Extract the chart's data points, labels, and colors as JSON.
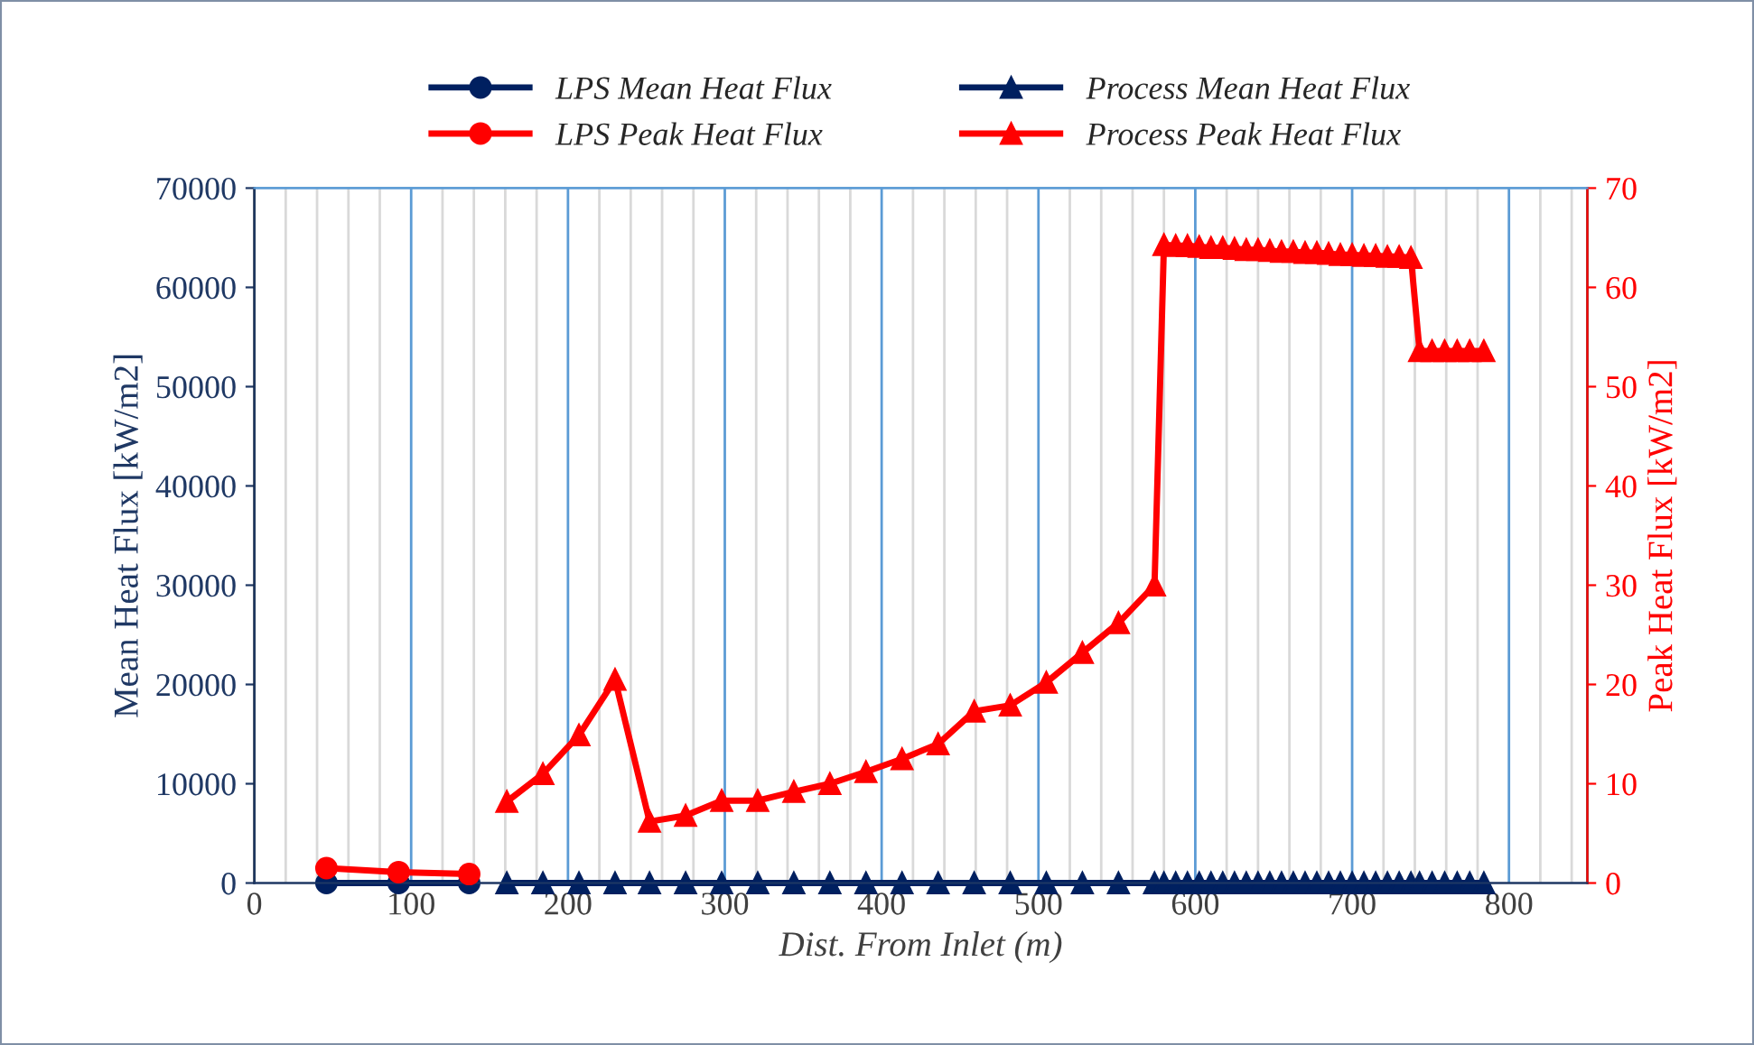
{
  "chart_data": {
    "type": "line",
    "xlabel": "Dist. From Inlet (m)",
    "ylabel": "Mean Heat Flux [kW/m2]",
    "y2label": "Peak Heat Flux [kW/m2]",
    "xlim": [
      0,
      850
    ],
    "xticks": [
      0,
      {
        "value": 20,
        "label": null
      },
      {
        "value": 40,
        "label": null
      },
      {
        "value": 60,
        "label": null
      },
      {
        "value": 80,
        "label": null
      },
      100,
      {
        "value": 120,
        "label": null
      },
      {
        "value": 140,
        "label": null
      },
      {
        "value": 160,
        "label": null
      },
      {
        "value": 180,
        "label": null
      },
      200,
      {
        "value": 220,
        "label": null
      },
      {
        "value": 240,
        "label": null
      },
      {
        "value": 260,
        "label": null
      },
      {
        "value": 280,
        "label": null
      },
      300,
      {
        "value": 320,
        "label": null
      },
      {
        "value": 340,
        "label": null
      },
      {
        "value": 360,
        "label": null
      },
      {
        "value": 380,
        "label": null
      },
      400,
      {
        "value": 420,
        "label": null
      },
      {
        "value": 440,
        "label": null
      },
      {
        "value": 460,
        "label": null
      },
      {
        "value": 480,
        "label": null
      },
      500,
      {
        "value": 520,
        "label": null
      },
      {
        "value": 540,
        "label": null
      },
      {
        "value": 560,
        "label": null
      },
      {
        "value": 580,
        "label": null
      },
      600,
      {
        "value": 620,
        "label": null
      },
      {
        "value": 640,
        "label": null
      },
      {
        "value": 660,
        "label": null
      },
      {
        "value": 680,
        "label": null
      },
      700,
      {
        "value": 720,
        "label": null
      },
      {
        "value": 740,
        "label": null
      },
      {
        "value": 760,
        "label": null
      },
      {
        "value": 780,
        "label": null
      },
      800,
      {
        "value": 820,
        "label": null
      },
      {
        "value": 840,
        "label": null
      }
    ],
    "ylim": [
      0,
      70000
    ],
    "yticks": [
      0,
      10000,
      20000,
      30000,
      40000,
      50000,
      60000,
      70000
    ],
    "y2lim": [
      0,
      70
    ],
    "y2ticks": [
      0,
      10,
      20,
      30,
      40,
      50,
      60,
      70
    ],
    "grid": "x",
    "legend": "top",
    "line_style": "solid",
    "series": [
      {
        "name": "LPS Mean Heat Flux",
        "color": "#002060",
        "marker": "circle",
        "x": [
          46,
          92,
          137
        ],
        "values": [
          0,
          0,
          0
        ]
      },
      {
        "name": "Process Mean Heat Flux",
        "color": "#002060",
        "marker": "triangle",
        "x": [
          161,
          184,
          207,
          230,
          252,
          275,
          298,
          321,
          344,
          367,
          390,
          413,
          436,
          459,
          482,
          505,
          528,
          551,
          574,
          580,
          587.5,
          595,
          602.5,
          610,
          617.5,
          625,
          632.5,
          640,
          647.5,
          655,
          662.5,
          670,
          677.5,
          685,
          692.5,
          700,
          707.5,
          715,
          722.5,
          730,
          737.5,
          743,
          751,
          759,
          767,
          775,
          784
        ],
        "values": [
          0,
          0,
          0,
          0,
          0,
          0,
          0,
          0,
          0,
          0,
          0,
          0,
          0,
          0,
          0,
          0,
          0,
          0,
          0,
          0,
          0,
          0,
          0,
          0,
          0,
          0,
          0,
          0,
          0,
          0,
          0,
          0,
          0,
          0,
          0,
          0,
          0,
          0,
          0,
          0,
          0,
          0,
          0,
          0,
          0,
          0,
          0
        ]
      },
      {
        "name": "LPS Peak Heat Flux",
        "color": "#ff0000",
        "marker": "circle",
        "axis": "y2",
        "x": [
          46,
          92,
          137
        ],
        "values": [
          1.5,
          1.1,
          0.9
        ]
      },
      {
        "name": "Process Peak Heat Flux",
        "color": "#ff0000",
        "marker": "triangle",
        "axis": "y2",
        "x": [
          161,
          184,
          207,
          230,
          252,
          275,
          298,
          321,
          344,
          367,
          390,
          413,
          436,
          459,
          482,
          505,
          528,
          551,
          574,
          580,
          587.5,
          595,
          602.5,
          610,
          617.5,
          625,
          632.5,
          640,
          647.5,
          655,
          662.5,
          670,
          677.5,
          685,
          692.5,
          700,
          707.5,
          715,
          722.5,
          730,
          737.5,
          743,
          751,
          759,
          767,
          775,
          784
        ],
        "values": [
          8.2,
          11,
          14.9,
          20.5,
          6.2,
          6.8,
          8.3,
          8.3,
          9.2,
          10,
          11.2,
          12.5,
          14,
          17.3,
          17.9,
          20.2,
          23.2,
          26.2,
          30,
          64.3,
          64.2,
          64.2,
          64.1,
          64.0,
          64.0,
          63.9,
          63.8,
          63.8,
          63.7,
          63.6,
          63.6,
          63.5,
          63.5,
          63.4,
          63.3,
          63.3,
          63.2,
          63.2,
          63.1,
          63.1,
          63.0,
          53.6,
          53.6,
          53.6,
          53.6,
          53.6,
          53.6
        ]
      }
    ]
  }
}
